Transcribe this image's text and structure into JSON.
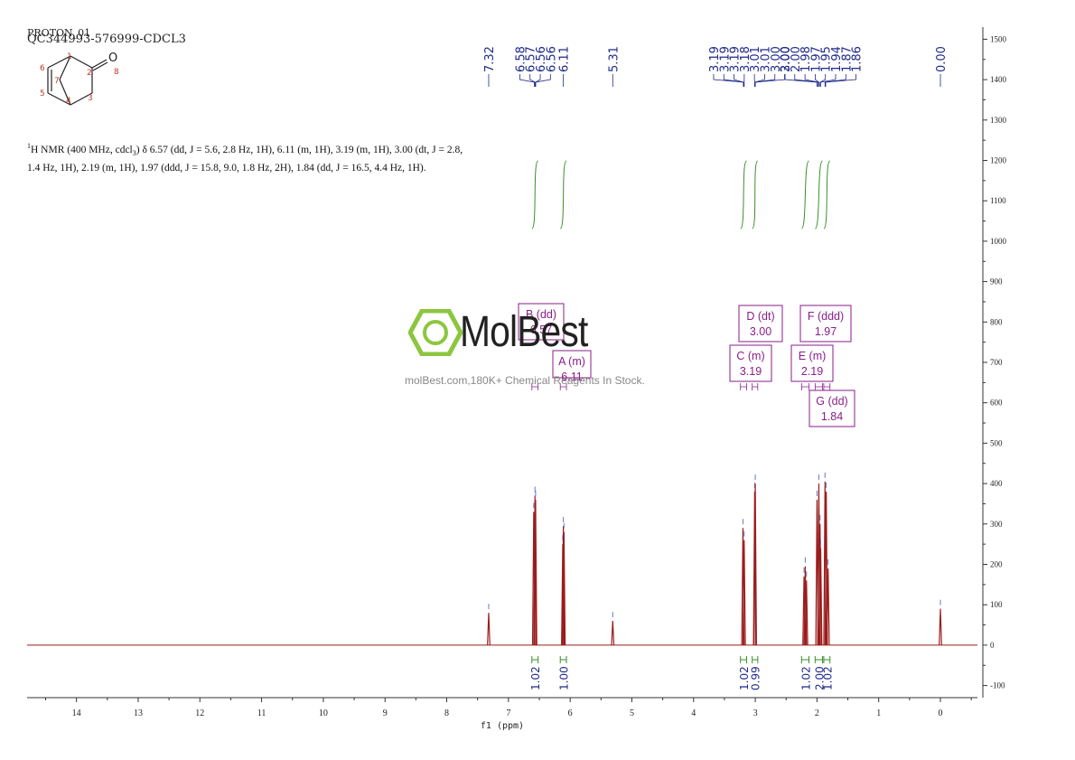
{
  "header": {
    "line1": "PROTON_01",
    "line2": "QC344993-576999-CDCL3"
  },
  "structure": {
    "atom_labels": [
      "1",
      "2",
      "3",
      "4",
      "5",
      "6",
      "7",
      "8"
    ],
    "oxygen": "O"
  },
  "description": {
    "nucleus": "1",
    "text": "H NMR (400 MHz, cdcl",
    "sub": "3",
    "line1_rest": ") δ 6.57 (dd, J = 5.6, 2.8 Hz, 1H), 6.11 (m, 1H), 3.19 (m, 1H), 3.00 (dt, J = 2.8,",
    "line2": "1.4 Hz, 1H), 2.19 (m, 1H), 1.97 (ddd, J = 15.8, 9.0, 1.8 Hz, 2H), 1.84 (dd, J = 16.5, 4.4 Hz, 1H)."
  },
  "watermark": {
    "brand": "MolBest",
    "tagline": "molBest.com,180K+ Chemical Reagents In Stock."
  },
  "colors": {
    "spectrum": "#9b1c1c",
    "integral": "#3a8f2a",
    "peak_label": "#1f2a8a",
    "multiplet": "#8a1e8a",
    "logo_green": "#8cc63f",
    "axis": "#333333"
  },
  "chart_data": {
    "type": "line",
    "xlabel": "f1 (ppm)",
    "xlim": [
      14.8,
      -0.6
    ],
    "ylim": [
      -130,
      1530
    ],
    "x_ticks": [
      14,
      13,
      12,
      11,
      10,
      9,
      8,
      7,
      6,
      5,
      4,
      3,
      2,
      1,
      0
    ],
    "y_ticks": [
      1500,
      1400,
      1300,
      1200,
      1100,
      1000,
      900,
      800,
      700,
      600,
      500,
      400,
      300,
      200,
      100,
      0,
      -100
    ],
    "peaks": [
      {
        "ppm": 7.32,
        "height": 80
      },
      {
        "ppm": 6.59,
        "height": 330
      },
      {
        "ppm": 6.57,
        "height": 370
      },
      {
        "ppm": 6.56,
        "height": 360
      },
      {
        "ppm": 6.12,
        "height": 250
      },
      {
        "ppm": 6.11,
        "height": 295
      },
      {
        "ppm": 6.1,
        "height": 280
      },
      {
        "ppm": 5.31,
        "height": 60
      },
      {
        "ppm": 3.2,
        "height": 290
      },
      {
        "ppm": 3.18,
        "height": 260
      },
      {
        "ppm": 3.01,
        "height": 380
      },
      {
        "ppm": 3.0,
        "height": 400
      },
      {
        "ppm": 2.21,
        "height": 170
      },
      {
        "ppm": 2.19,
        "height": 195
      },
      {
        "ppm": 2.17,
        "height": 160
      },
      {
        "ppm": 2.0,
        "height": 360
      },
      {
        "ppm": 1.97,
        "height": 400
      },
      {
        "ppm": 1.95,
        "height": 300
      },
      {
        "ppm": 1.94,
        "height": 240
      },
      {
        "ppm": 1.87,
        "height": 405
      },
      {
        "ppm": 1.85,
        "height": 380
      },
      {
        "ppm": 1.82,
        "height": 190
      },
      {
        "ppm": 0.0,
        "height": 90
      }
    ],
    "peak_groups": [
      {
        "labels": [
          "7.32"
        ],
        "ppms": [
          7.32
        ]
      },
      {
        "labels": [
          "6.58",
          "6.57",
          "6.56",
          "6.56"
        ],
        "ppms": [
          6.58,
          6.57,
          6.56,
          6.56
        ]
      },
      {
        "labels": [
          "6.11"
        ],
        "ppms": [
          6.11
        ]
      },
      {
        "labels": [
          "5.31"
        ],
        "ppms": [
          5.31
        ]
      },
      {
        "labels": [
          "3.19",
          "3.19",
          "3.19",
          "3.18",
          "3.01",
          "3.01",
          "3.00",
          "3.00"
        ],
        "ppms": [
          3.19,
          3.19,
          3.19,
          3.18,
          3.01,
          3.01,
          3.0,
          3.0
        ]
      },
      {
        "labels": [
          "2.00",
          "2.00",
          "1.98",
          "1.97",
          "1.95",
          "1.94",
          "1.87",
          "1.86"
        ],
        "ppms": [
          2.0,
          2.0,
          1.98,
          1.97,
          1.95,
          1.94,
          1.87,
          1.86
        ]
      },
      {
        "labels": [
          "0.00"
        ],
        "ppms": [
          0.0
        ]
      }
    ],
    "integrals": [
      {
        "from": 6.62,
        "to": 6.52,
        "value": "1.02"
      },
      {
        "from": 6.16,
        "to": 6.06,
        "value": "1.00"
      },
      {
        "from": 3.24,
        "to": 3.14,
        "value": "1.02"
      },
      {
        "from": 3.05,
        "to": 2.96,
        "value": "0.99"
      },
      {
        "from": 2.25,
        "to": 2.13,
        "value": "1.02"
      },
      {
        "from": 2.03,
        "to": 1.91,
        "value": "2.00"
      },
      {
        "from": 1.89,
        "to": 1.79,
        "value": "1.02"
      }
    ],
    "multiplets": [
      {
        "letter": "B",
        "type": "dd",
        "shift": "6.57"
      },
      {
        "letter": "A",
        "type": "m",
        "shift": "6.11"
      },
      {
        "letter": "D",
        "type": "dt",
        "shift": "3.00"
      },
      {
        "letter": "C",
        "type": "m",
        "shift": "3.19"
      },
      {
        "letter": "F",
        "type": "ddd",
        "shift": "1.97"
      },
      {
        "letter": "E",
        "type": "m",
        "shift": "2.19"
      },
      {
        "letter": "G",
        "type": "dd",
        "shift": "1.84"
      }
    ]
  }
}
